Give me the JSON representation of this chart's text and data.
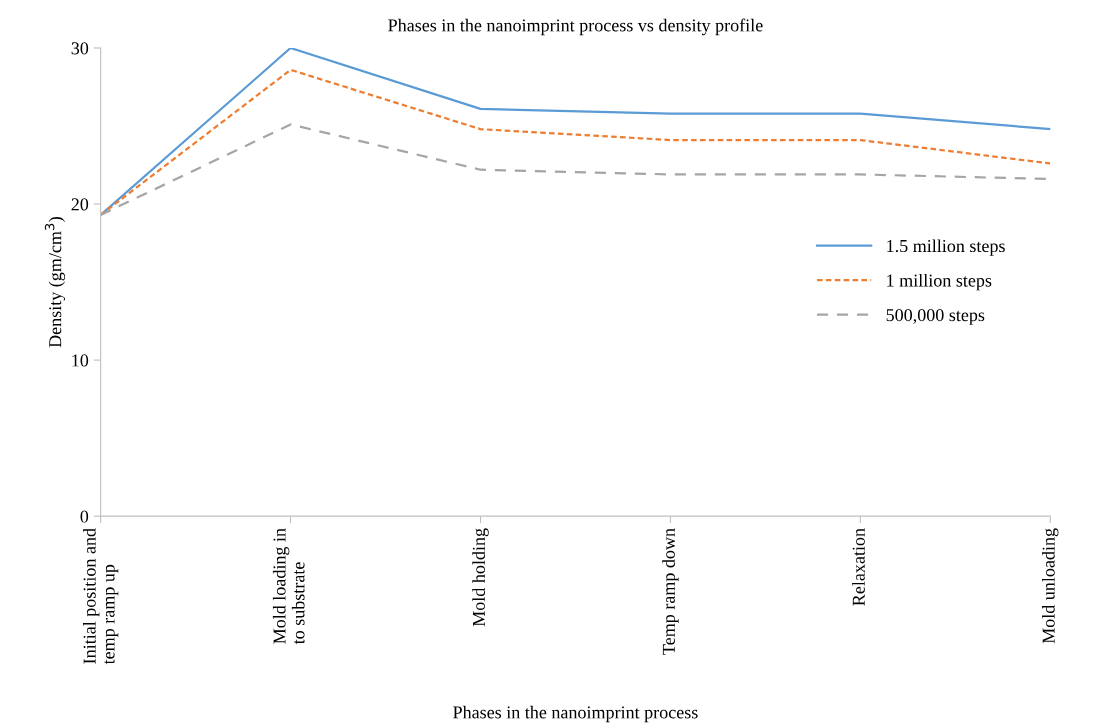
{
  "chart_data": {
    "type": "line",
    "title": "Phases in the nanoimprint process vs density profile",
    "xlabel": "Phases in the nanoimprint process",
    "ylabel": "Density (gm/cm$^{3}$)",
    "categories": [
      "Initial position and\ntemp ramp up",
      "Mold loading in\nto substrate",
      "Mold holding",
      "Temp ramp down",
      "Relaxation",
      "Mold unloading"
    ],
    "series": [
      {
        "name": "1.5 million steps",
        "color": "#5b9bd5",
        "line_style": "solid",
        "values": [
          19.3,
          30.0,
          26.1,
          25.8,
          25.8,
          24.8
        ]
      },
      {
        "name": "1 million steps",
        "color": "#ed7d31",
        "line_style": "dotted",
        "values": [
          19.3,
          28.6,
          24.8,
          24.1,
          24.1,
          22.6
        ]
      },
      {
        "name": "500,000 steps",
        "color": "#a5a5a5",
        "line_style": "dashed",
        "values": [
          19.3,
          25.1,
          22.2,
          21.9,
          21.9,
          21.6
        ]
      }
    ],
    "ylim": [
      0,
      30
    ],
    "yticks": [
      0,
      10,
      20,
      30
    ],
    "grid": false,
    "legend": "right",
    "marker": "none"
  }
}
